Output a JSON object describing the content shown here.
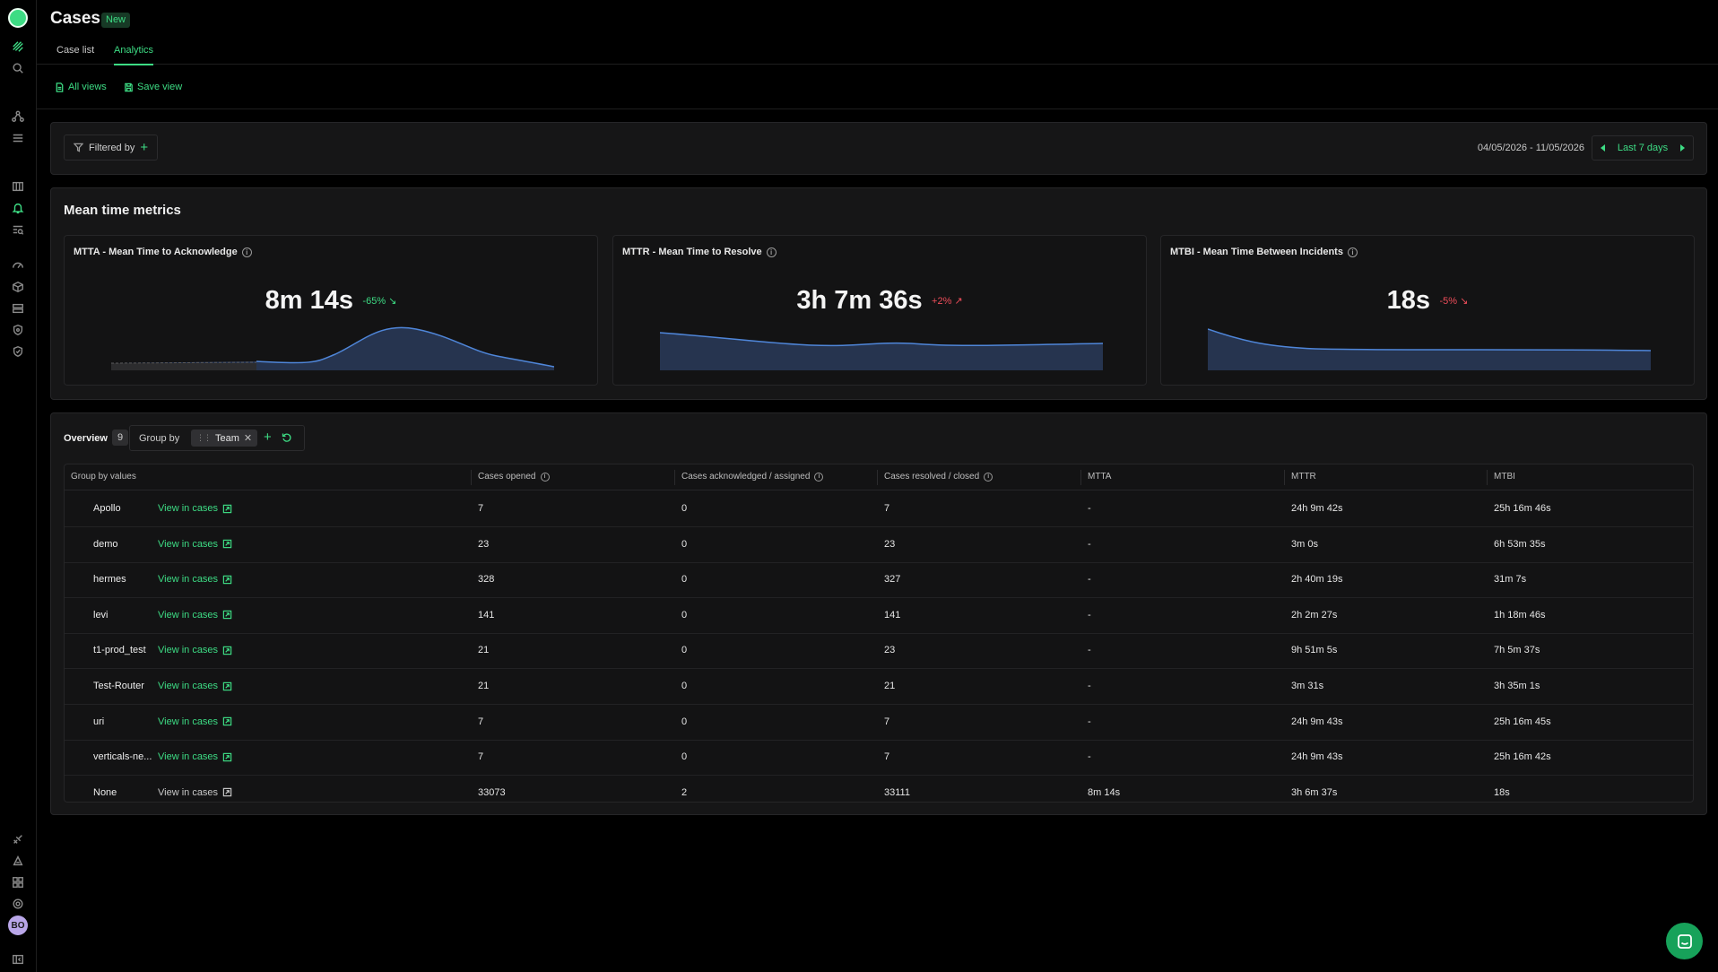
{
  "app": {
    "title": "Cases",
    "badge": "New",
    "avatar_initials": "BO",
    "accent": "#3ddc84"
  },
  "tabs": [
    {
      "label": "Case list",
      "active": false
    },
    {
      "label": "Analytics",
      "active": true
    }
  ],
  "subbar": {
    "all_views": "All views",
    "save_view": "Save view"
  },
  "filters": {
    "label": "Filtered by",
    "date_range": "04/05/2026 - 11/05/2026",
    "range_label": "Last 7 days"
  },
  "metrics": {
    "title": "Mean time metrics",
    "cards": [
      {
        "label": "MTTA - Mean Time to Acknowledge",
        "value": "8m 14s",
        "change": "-65% ↘",
        "trend": "good"
      },
      {
        "label": "MTTR - Mean Time to Resolve",
        "value": "3h 7m 36s",
        "change": "+2% ↗",
        "trend": "bad"
      },
      {
        "label": "MTBI - Mean Time Between Incidents",
        "value": "18s",
        "change": "-5% ↘",
        "trend": "bad"
      }
    ]
  },
  "overview": {
    "title": "Overview",
    "count": "9",
    "group_by_label": "Group by",
    "group_chip": "Team",
    "columns": [
      "Group by values",
      "Cases opened",
      "Cases acknowledged / assigned",
      "Cases resolved / closed",
      "MTTA",
      "MTTR",
      "MTBI"
    ],
    "view_link": "View in cases",
    "rows": [
      {
        "team": "Apollo",
        "opened": "7",
        "ack": "0",
        "resolved": "7",
        "mtta": "-",
        "mttr": "24h 9m 42s",
        "mtbi": "25h 16m 46s"
      },
      {
        "team": "demo",
        "opened": "23",
        "ack": "0",
        "resolved": "23",
        "mtta": "-",
        "mttr": "3m 0s",
        "mtbi": "6h 53m 35s"
      },
      {
        "team": "hermes",
        "opened": "328",
        "ack": "0",
        "resolved": "327",
        "mtta": "-",
        "mttr": "2h 40m 19s",
        "mtbi": "31m 7s"
      },
      {
        "team": "levi",
        "opened": "141",
        "ack": "0",
        "resolved": "141",
        "mtta": "-",
        "mttr": "2h 2m 27s",
        "mtbi": "1h 18m 46s"
      },
      {
        "team": "t1-prod_test",
        "opened": "21",
        "ack": "0",
        "resolved": "23",
        "mtta": "-",
        "mttr": "9h 51m 5s",
        "mtbi": "7h 5m 37s"
      },
      {
        "team": "Test-Router",
        "opened": "21",
        "ack": "0",
        "resolved": "21",
        "mtta": "-",
        "mttr": "3m 31s",
        "mtbi": "3h 35m 1s"
      },
      {
        "team": "uri",
        "opened": "7",
        "ack": "0",
        "resolved": "7",
        "mtta": "-",
        "mttr": "24h 9m 43s",
        "mtbi": "25h 16m 45s"
      },
      {
        "team": "verticals-ne...",
        "opened": "7",
        "ack": "0",
        "resolved": "7",
        "mtta": "-",
        "mttr": "24h 9m 43s",
        "mtbi": "25h 16m 42s"
      },
      {
        "team": "None",
        "opened": "33073",
        "ack": "2",
        "resolved": "33111",
        "mtta": "8m 14s",
        "mttr": "3h 6m 37s",
        "mtbi": "18s"
      }
    ]
  }
}
